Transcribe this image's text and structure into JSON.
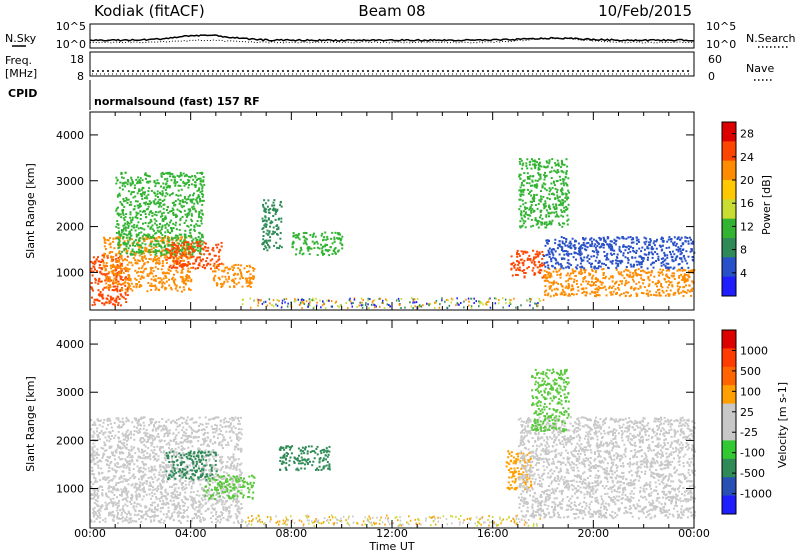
{
  "header": {
    "station": "Kodiak (fitACF)",
    "beam": "Beam 08",
    "date": "10/Feb/2015"
  },
  "noise_panel": {
    "left_label": "N.Sky",
    "right_label": "N.Search",
    "left_ticks": [
      "10^5",
      "10^0"
    ],
    "right_ticks": [
      "10^5",
      "10^0"
    ]
  },
  "freq_panel": {
    "left_label_line1": "Freq.",
    "left_label_line2": "[MHz]",
    "right_label": "Nave",
    "left_ticks": [
      "18",
      "8"
    ],
    "right_ticks": [
      "60",
      "0"
    ]
  },
  "cpid": {
    "label": "CPID",
    "text": "normalsound (fast) 157 RF"
  },
  "chart_data": [
    {
      "type": "heatmap",
      "title": "",
      "ylabel": "Slant Range [km]",
      "xlabel": "",
      "x_ticks": [
        "00:00",
        "04:00",
        "08:00",
        "12:00",
        "16:00",
        "20:00",
        "00:00"
      ],
      "xlim_hours": [
        0,
        24
      ],
      "ylim": [
        180,
        4500
      ],
      "y_ticks": [
        1000,
        2000,
        3000,
        4000
      ],
      "colorbar": {
        "label": "Power [dB]",
        "ticks": [
          4,
          8,
          12,
          16,
          20,
          24,
          28
        ],
        "range": [
          0,
          30
        ],
        "colors": [
          "#1e1eff",
          "#2850c8",
          "#2e8b57",
          "#32b432",
          "#c8dc32",
          "#ffc800",
          "#ff8c00",
          "#ff4600",
          "#dc0000"
        ]
      },
      "regions": [
        {
          "t0": 0.0,
          "t1": 1.5,
          "r0": 300,
          "r1": 1400,
          "level": 7
        },
        {
          "t0": 0.5,
          "t1": 4.0,
          "r0": 600,
          "r1": 1800,
          "level": 6
        },
        {
          "t0": 1.0,
          "t1": 4.5,
          "r0": 1400,
          "r1": 3200,
          "level": 3
        },
        {
          "t0": 3.0,
          "t1": 5.2,
          "r0": 1100,
          "r1": 1700,
          "level": 7
        },
        {
          "t0": 4.8,
          "t1": 6.5,
          "r0": 700,
          "r1": 1200,
          "level": 6
        },
        {
          "t0": 6.8,
          "t1": 7.6,
          "r0": 1500,
          "r1": 2600,
          "level": 2
        },
        {
          "t0": 8.0,
          "t1": 10.0,
          "r0": 1400,
          "r1": 1900,
          "level": 3
        },
        {
          "t0": 16.7,
          "t1": 18.0,
          "r0": 900,
          "r1": 1500,
          "level": 7
        },
        {
          "t0": 17.0,
          "t1": 19.0,
          "r0": 2000,
          "r1": 3500,
          "level": 3
        },
        {
          "t0": 18.0,
          "t1": 24.0,
          "r0": 500,
          "r1": 1100,
          "level": 6
        },
        {
          "t0": 18.0,
          "t1": 24.0,
          "r0": 1100,
          "r1": 1800,
          "level": 1
        }
      ]
    },
    {
      "type": "heatmap",
      "title": "",
      "ylabel": "Slant Range [km]",
      "xlabel": "Time UT",
      "x_ticks": [
        "00:00",
        "04:00",
        "08:00",
        "12:00",
        "16:00",
        "20:00",
        "00:00"
      ],
      "xlim_hours": [
        0,
        24
      ],
      "ylim": [
        180,
        4500
      ],
      "y_ticks": [
        1000,
        2000,
        3000,
        4000
      ],
      "colorbar": {
        "label": "Velocity [m s-1]",
        "ticks": [
          1000,
          500,
          100,
          25,
          -25,
          -100,
          -500,
          -1000
        ],
        "colors": [
          "#1e1eff",
          "#2850b4",
          "#2e8b57",
          "#32c832",
          "#c8c8c8",
          "#c8c8c8",
          "#ffa000",
          "#ff6400",
          "#ff3c00",
          "#dc0000"
        ]
      },
      "regions": [
        {
          "t0": 0.0,
          "t1": 6.0,
          "r0": 300,
          "r1": 2500,
          "level": "grey"
        },
        {
          "t0": 3.0,
          "t1": 5.0,
          "r0": 1200,
          "r1": 1800,
          "level": "green"
        },
        {
          "t0": 4.5,
          "t1": 6.5,
          "r0": 800,
          "r1": 1300,
          "level": "lightgreen"
        },
        {
          "t0": 7.5,
          "t1": 9.5,
          "r0": 1400,
          "r1": 1900,
          "level": "green"
        },
        {
          "t0": 16.5,
          "t1": 17.5,
          "r0": 1000,
          "r1": 1800,
          "level": "orange"
        },
        {
          "t0": 17.0,
          "t1": 24.0,
          "r0": 400,
          "r1": 2500,
          "level": "grey"
        },
        {
          "t0": 17.5,
          "t1": 19.0,
          "r0": 2200,
          "r1": 3500,
          "level": "lightgreen"
        }
      ]
    }
  ]
}
